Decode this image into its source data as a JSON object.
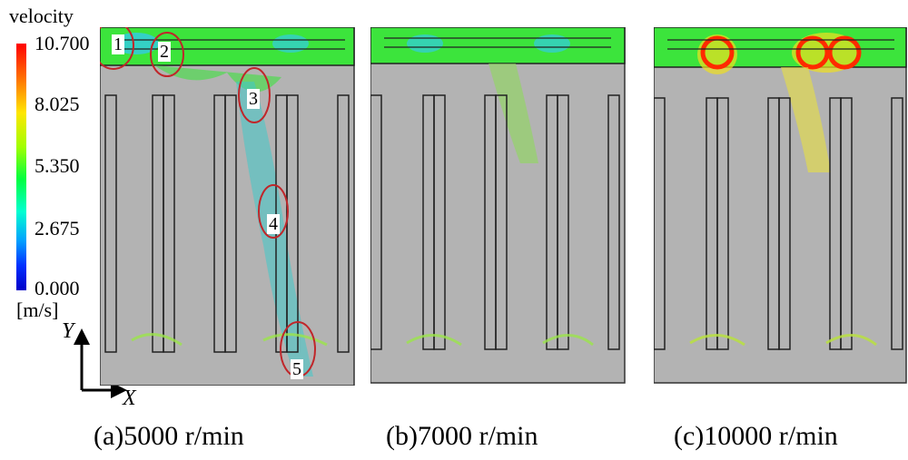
{
  "colorbar": {
    "title": "velocity",
    "max": "10.700",
    "t1": "8.025",
    "t2": "5.350",
    "t3": "2.675",
    "min": "0.000",
    "unit": "[m/s]"
  },
  "axes": {
    "y": "Y",
    "x": "X"
  },
  "markers": [
    "1",
    "2",
    "3",
    "4",
    "5"
  ],
  "captions": [
    "(a)5000 r/min",
    "(b)7000 r/min",
    "(c)10000 r/min"
  ],
  "colors": {
    "gap_top": "#35e83a",
    "body": "#b4b4b4",
    "ring": "#c0262a",
    "arrow_fast": "#ff2a00"
  }
}
